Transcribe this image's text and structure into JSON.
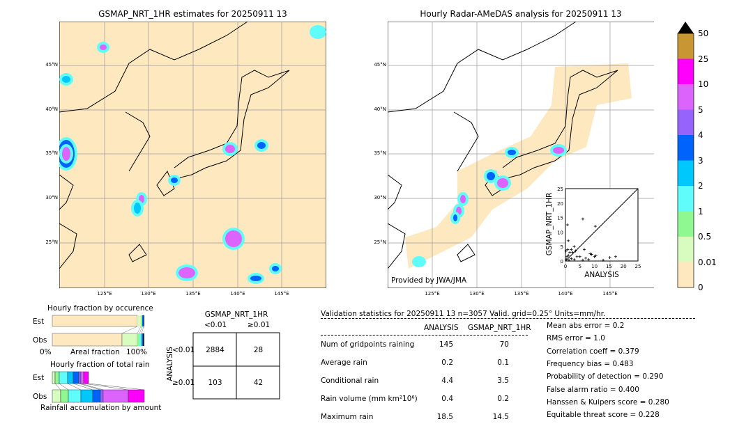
{
  "left_map": {
    "title": "GSMAP_NRT_1HR estimates for 20250911 13"
  },
  "right_map": {
    "title": "Hourly Radar-AMeDAS analysis for 20250911 13",
    "credit": "Provided by JWA/JMA"
  },
  "lat_ticks": [
    "45°N",
    "40°N",
    "35°N",
    "30°N",
    "25°N"
  ],
  "lon_ticks": [
    "125°E",
    "130°E",
    "135°E",
    "140°E",
    "145°E"
  ],
  "colorbar": {
    "labels": [
      "50",
      "25",
      "10",
      "5",
      "4",
      "3",
      "2",
      "1",
      "0.5",
      "0.01",
      "0"
    ],
    "colors": [
      "#c89632",
      "#fc00fc",
      "#dc64fc",
      "#9664fc",
      "#0064fc",
      "#00c8fc",
      "#60fcfc",
      "#90f890",
      "#d8fcc0",
      "#fee8c0"
    ],
    "extend_color": "#000000"
  },
  "chart_data": {
    "type": "scatter",
    "xlabel": "ANALYSIS",
    "ylabel": "GSMAP_NRT_1HR",
    "xlim": [
      0,
      25
    ],
    "ylim": [
      0,
      25
    ],
    "ticks": [
      "0",
      "5",
      "10",
      "15",
      "20",
      "25"
    ],
    "points": [
      [
        0.7,
        12.5
      ],
      [
        6,
        14.5
      ],
      [
        10.3,
        12
      ],
      [
        1,
        7
      ],
      [
        6.5,
        4
      ],
      [
        8.5,
        2.5
      ],
      [
        9,
        2.3
      ],
      [
        3,
        5
      ],
      [
        2,
        4
      ],
      [
        1.5,
        3
      ],
      [
        2.5,
        3
      ],
      [
        3.5,
        3.5
      ],
      [
        1,
        2
      ],
      [
        0.5,
        1.5
      ],
      [
        4,
        1.5
      ],
      [
        5,
        1.5
      ],
      [
        7,
        1
      ],
      [
        10,
        1.5
      ],
      [
        10.5,
        1.8
      ],
      [
        13,
        0.3
      ],
      [
        15.3,
        1.2
      ],
      [
        17.3,
        1.5
      ],
      [
        0.3,
        0.5
      ],
      [
        1.2,
        0.3
      ],
      [
        2,
        0.8
      ],
      [
        3,
        0.5
      ],
      [
        6,
        0.3
      ],
      [
        8,
        0.5
      ],
      [
        0.2,
        3.5
      ],
      [
        0.8,
        4
      ]
    ]
  },
  "occurrence": {
    "title": "Hourly fraction by occurence",
    "rows": [
      "Est",
      "Obs"
    ],
    "xlabel": "Areal fraction",
    "x_min": "0%",
    "x_max": "100%"
  },
  "total_rain": {
    "title": "Hourly fraction of total rain",
    "rows": [
      "Est",
      "Obs"
    ],
    "xlabel": "Rainfall accumulation by amount"
  },
  "contingency": {
    "col_title": "GSMAP_NRT_1HR",
    "row_title": "ANALYSIS",
    "col_labels": [
      "<0.01",
      "≥0.01"
    ],
    "row_labels": [
      "<0.01",
      "≥0.01"
    ],
    "cells": [
      [
        "2884",
        "28"
      ],
      [
        "103",
        "42"
      ]
    ]
  },
  "validation": {
    "header": "Validation statistics for 20250911 13  n=3057 Valid. grid=0.25° Units=mm/hr.",
    "columns": [
      "ANALYSIS",
      "GSMAP_NRT_1HR"
    ],
    "rows": [
      {
        "label": "Num of gridpoints raining",
        "analysis": "145",
        "gsmap": "70"
      },
      {
        "label": "Average rain",
        "analysis": "0.2",
        "gsmap": "0.1"
      },
      {
        "label": "Conditional rain",
        "analysis": "4.4",
        "gsmap": "3.5"
      },
      {
        "label": "Rain volume (mm km²10⁶)",
        "analysis": "0.4",
        "gsmap": "0.2"
      },
      {
        "label": "Maximum rain",
        "analysis": "18.5",
        "gsmap": "14.5"
      }
    ],
    "scores": [
      "Mean abs error =    0.2",
      "RMS error =    1.0",
      "Correlation coeff =  0.379",
      "Frequency bias =  0.483",
      "Probability of detection =  0.290",
      "False alarm ratio =  0.400",
      "Hanssen & Kuipers score =  0.280",
      "Equitable threat score =  0.228"
    ]
  }
}
